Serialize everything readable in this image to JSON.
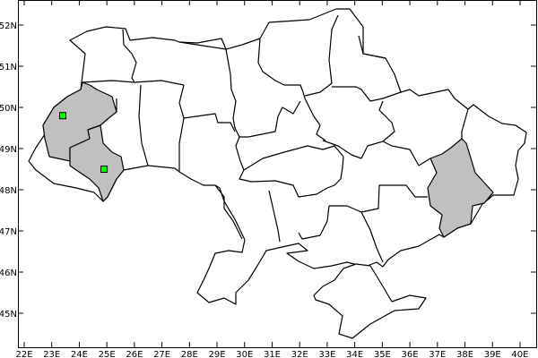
{
  "map": {
    "type": "choropleth-map",
    "region": "Ukraine",
    "colors": {
      "background": "#ffffff",
      "land": "#ffffff",
      "highlight": "#c0c0c0",
      "marker": "#00ff00",
      "border": "#000000"
    },
    "highlighted_regions": [
      "Lviv",
      "Ivano-Frankivsk",
      "Donetsk"
    ],
    "lon_ticks": [
      "22E",
      "23E",
      "24E",
      "25E",
      "26E",
      "27E",
      "28E",
      "29E",
      "30E",
      "31E",
      "32E",
      "33E",
      "34E",
      "35E",
      "36E",
      "37E",
      "38E",
      "39E",
      "40E"
    ],
    "lat_ticks": [
      "45N",
      "46N",
      "47N",
      "48N",
      "49N",
      "50N",
      "51N",
      "52N"
    ],
    "markers": [
      {
        "lon": 23.4,
        "lat": 49.8,
        "shape": "square"
      },
      {
        "lon": 24.9,
        "lat": 48.5,
        "shape": "square"
      }
    ]
  }
}
